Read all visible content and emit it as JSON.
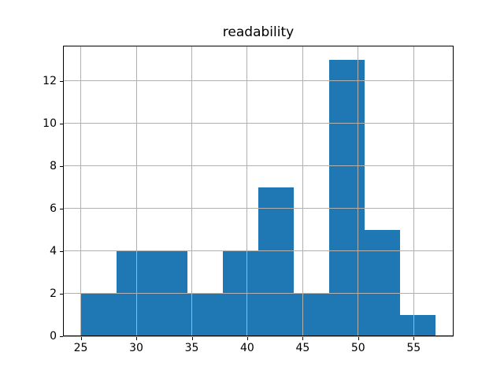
{
  "chart_data": {
    "type": "bar",
    "subtype": "histogram",
    "title": "readability",
    "xlabel": "",
    "ylabel": "",
    "bin_edges": [
      25.0,
      28.2,
      31.4,
      34.6,
      37.8,
      41.0,
      44.2,
      47.4,
      50.6,
      53.8,
      57.0
    ],
    "counts": [
      2,
      4,
      4,
      2,
      4,
      7,
      2,
      13,
      5,
      1
    ],
    "xticks": [
      25,
      30,
      35,
      40,
      45,
      50,
      55
    ],
    "yticks": [
      0,
      2,
      4,
      6,
      8,
      10,
      12
    ],
    "xlim": [
      23.4,
      58.6
    ],
    "ylim": [
      0,
      13.65
    ],
    "grid": true,
    "legend": false,
    "colors": {
      "bar": "#1f77b4",
      "grid": "#b0b0b0",
      "spine": "#000000",
      "text": "#000000",
      "background": "#ffffff"
    }
  }
}
